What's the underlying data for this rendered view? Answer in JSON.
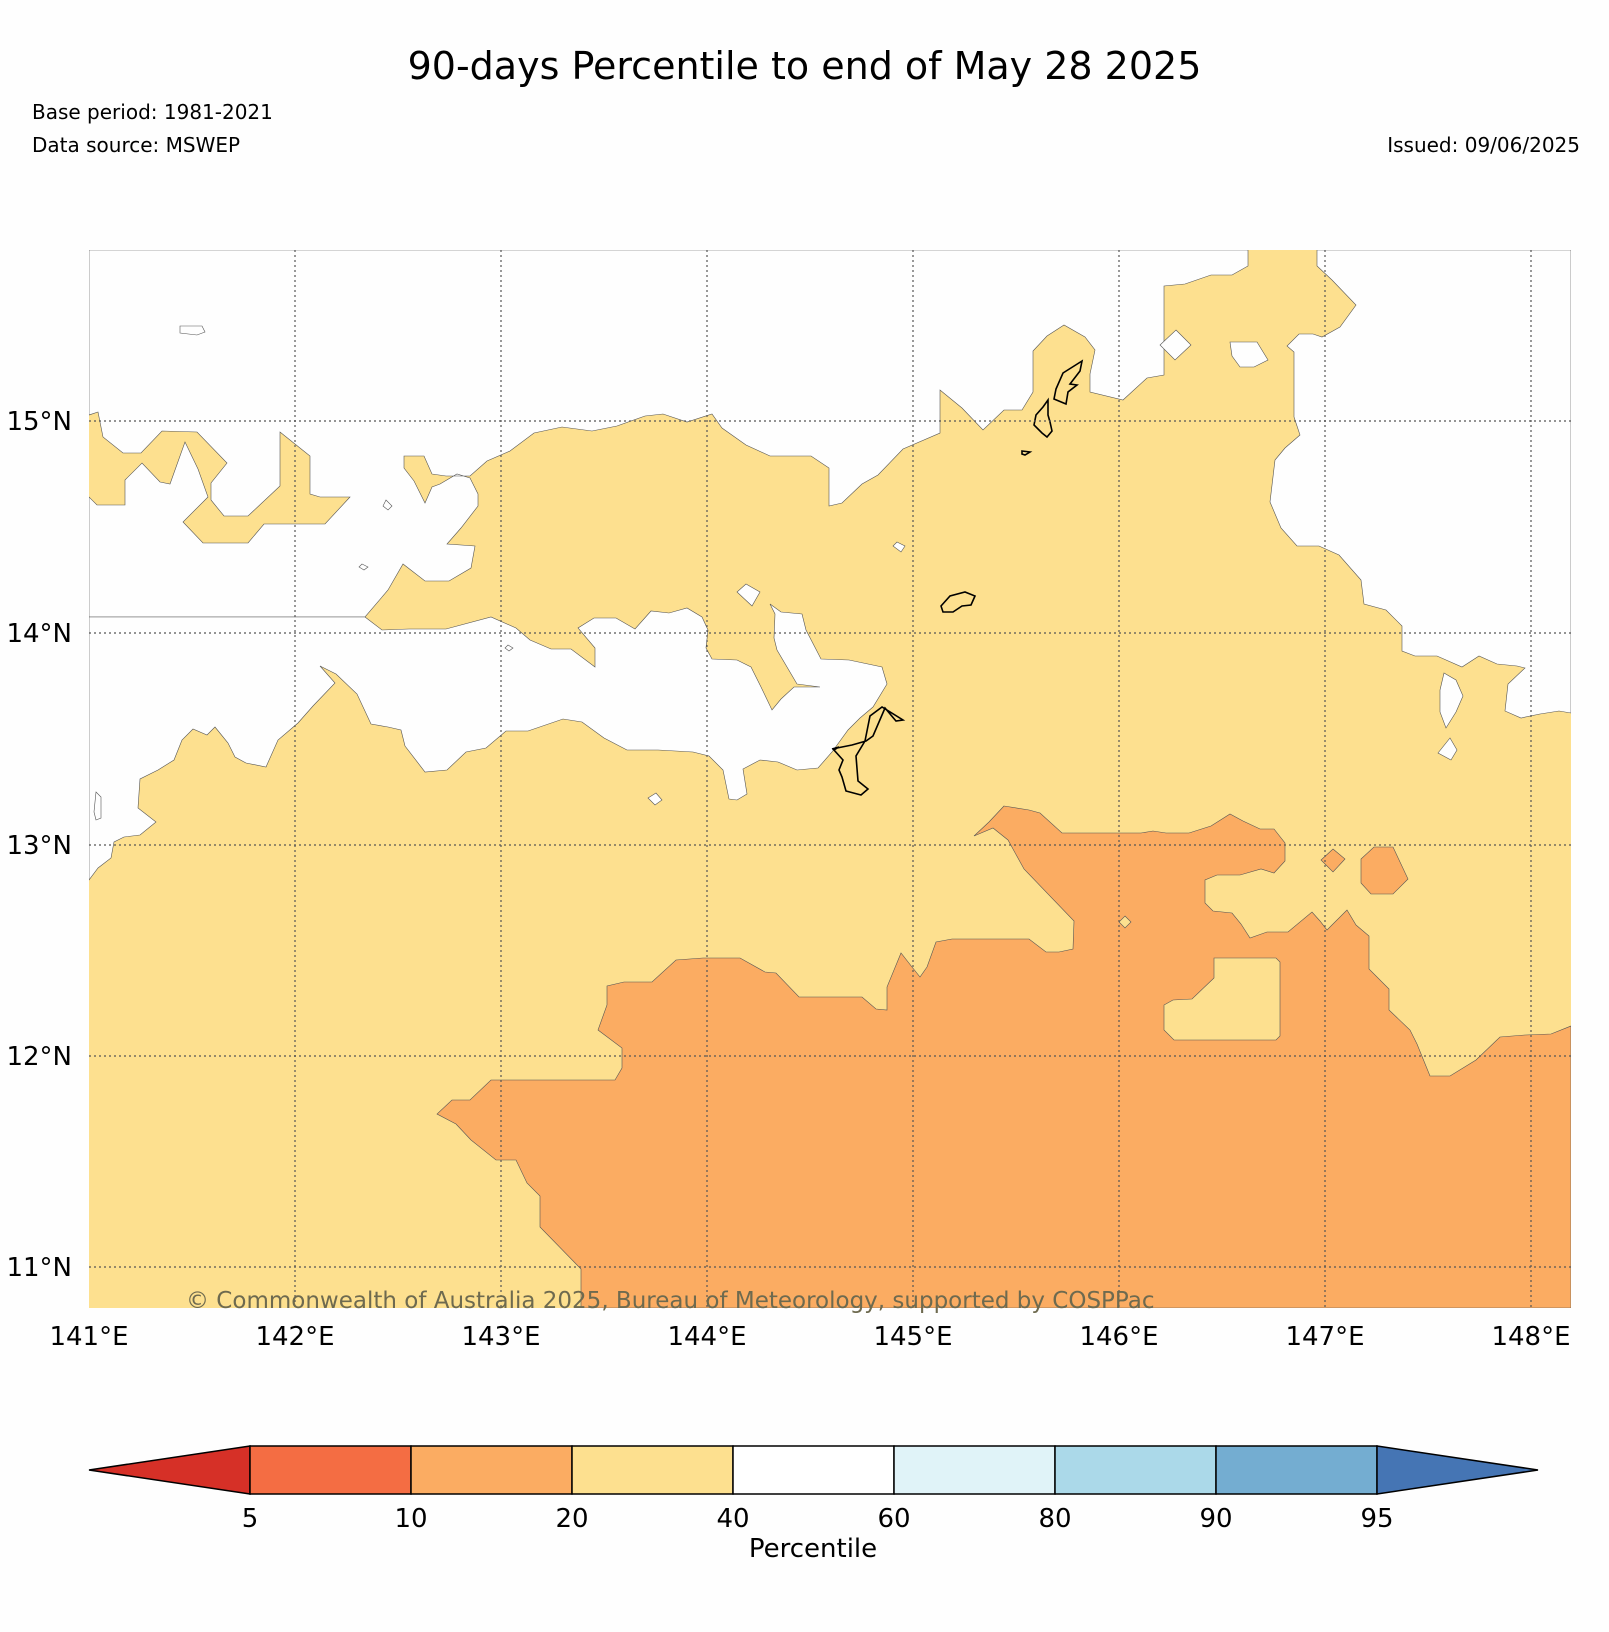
{
  "title": "90-days Percentile to end of May 28 2025",
  "base_period": "Base period: 1981-2021",
  "data_source": "Data source: MSWEP",
  "issued": "Issued: 09/06/2025",
  "copyright": "© Commonwealth of Australia 2025, Bureau of Meteorology, supported by COSPPac",
  "map": {
    "lon_labels": [
      "141°E",
      "142°E",
      "143°E",
      "144°E",
      "145°E",
      "146°E",
      "147°E",
      "148°E"
    ],
    "lat_labels": [
      "15°N",
      "14°N",
      "13°N",
      "12°N",
      "11°N"
    ],
    "extent": {
      "lon_min": 141.0,
      "lon_max": 148.2,
      "lat_min": 10.8,
      "lat_max": 15.8
    },
    "category_colors": {
      "10-20": "#fbac62",
      "20-40": "#fde08f",
      "40-60": "#fefefe"
    }
  },
  "colorbar": {
    "label": "Percentile",
    "ticks": [
      "5",
      "10",
      "20",
      "40",
      "60",
      "80",
      "90",
      "95"
    ],
    "colors": [
      "#d63027",
      "#f46d43",
      "#fbac62",
      "#fde08f",
      "#ffffff",
      "#e0f3f8",
      "#abd9e9",
      "#74add1",
      "#4575b4"
    ]
  }
}
